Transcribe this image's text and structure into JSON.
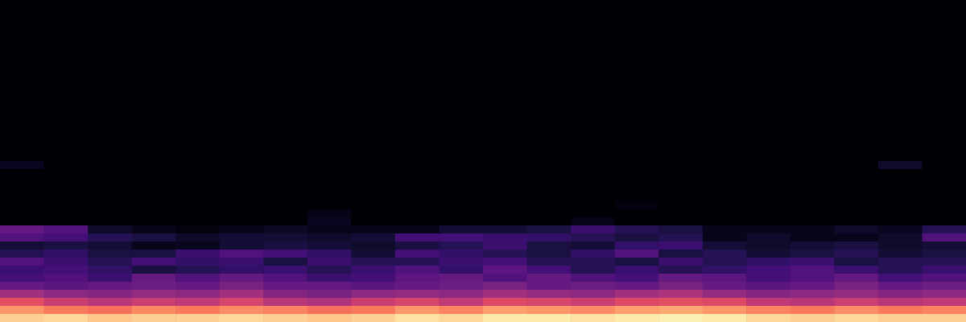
{
  "chart_data": {
    "type": "heatmap",
    "tick_labels": false,
    "color_range": [
      0,
      1
    ],
    "cells": [
      [
        0,
        0,
        0,
        0,
        0,
        0,
        0,
        0,
        0,
        0,
        0,
        0,
        0,
        0,
        0,
        0,
        0,
        0,
        0,
        0,
        0,
        0
      ],
      [
        0,
        0,
        0,
        0,
        0,
        0,
        0,
        0,
        0,
        0,
        0,
        0,
        0,
        0,
        0,
        0,
        0,
        0,
        0,
        0,
        0,
        0
      ],
      [
        0,
        0,
        0,
        0,
        0,
        0,
        0,
        0,
        0,
        0,
        0,
        0,
        0,
        0,
        0,
        0,
        0,
        0,
        0,
        0,
        0,
        0
      ],
      [
        0,
        0,
        0,
        0,
        0,
        0,
        0,
        0,
        0,
        0,
        0,
        0,
        0,
        0,
        0,
        0,
        0,
        0,
        0,
        0,
        0,
        0
      ],
      [
        0,
        0,
        0,
        0,
        0,
        0,
        0,
        0,
        0,
        0,
        0,
        0,
        0,
        0,
        0,
        0,
        0,
        0,
        0,
        0,
        0,
        0
      ],
      [
        0,
        0,
        0,
        0,
        0,
        0,
        0,
        0,
        0,
        0,
        0,
        0,
        0,
        0,
        0,
        0,
        0,
        0,
        0,
        0,
        0,
        0
      ],
      [
        0,
        0,
        0,
        0,
        0,
        0,
        0,
        0,
        0,
        0,
        0,
        0,
        0,
        0,
        0,
        0,
        0,
        0,
        0,
        0,
        0,
        0
      ],
      [
        0,
        0,
        0,
        0,
        0,
        0,
        0,
        0,
        0,
        0,
        0,
        0,
        0,
        0,
        0,
        0,
        0,
        0,
        0,
        0,
        0,
        0
      ],
      [
        0,
        0,
        0,
        0,
        0,
        0,
        0,
        0,
        0,
        0,
        0,
        0,
        0,
        0,
        0,
        0,
        0,
        0,
        0,
        0,
        0,
        0
      ],
      [
        0,
        0,
        0,
        0,
        0,
        0,
        0,
        0,
        0,
        0,
        0,
        0,
        0,
        0,
        0,
        0,
        0,
        0,
        0,
        0,
        0,
        0
      ],
      [
        0,
        0,
        0,
        0,
        0,
        0,
        0,
        0,
        0,
        0,
        0,
        0,
        0,
        0,
        0,
        0,
        0,
        0,
        0,
        0,
        0,
        0
      ],
      [
        0,
        0,
        0,
        0,
        0,
        0,
        0,
        0,
        0,
        0,
        0,
        0,
        0,
        0,
        0,
        0,
        0,
        0,
        0,
        0,
        0,
        0
      ],
      [
        0,
        0,
        0,
        0,
        0,
        0,
        0,
        0,
        0,
        0,
        0,
        0,
        0,
        0,
        0,
        0,
        0,
        0,
        0,
        0,
        0,
        0
      ],
      [
        0,
        0,
        0,
        0,
        0,
        0,
        0,
        0,
        0,
        0,
        0,
        0,
        0,
        0,
        0,
        0,
        0,
        0,
        0,
        0,
        0,
        0
      ],
      [
        0,
        0,
        0,
        0,
        0,
        0,
        0,
        0,
        0,
        0,
        0,
        0,
        0,
        0,
        0,
        0,
        0,
        0,
        0,
        0,
        0,
        0
      ],
      [
        0,
        0,
        0,
        0,
        0,
        0,
        0,
        0,
        0,
        0,
        0,
        0,
        0,
        0,
        0,
        0,
        0,
        0,
        0,
        0,
        0,
        0
      ],
      [
        0,
        0,
        0,
        0,
        0,
        0,
        0,
        0,
        0,
        0,
        0,
        0,
        0,
        0,
        0,
        0,
        0,
        0,
        0,
        0,
        0,
        0
      ],
      [
        0,
        0,
        0,
        0,
        0,
        0,
        0,
        0,
        0,
        0,
        0,
        0,
        0,
        0,
        0,
        0,
        0,
        0,
        0,
        0,
        0,
        0
      ],
      [
        0,
        0,
        0,
        0,
        0,
        0,
        0,
        0,
        0,
        0,
        0,
        0,
        0,
        0,
        0,
        0,
        0,
        0,
        0,
        0,
        0,
        0
      ],
      [
        0,
        0,
        0,
        0,
        0,
        0,
        0,
        0,
        0,
        0,
        0,
        0,
        0,
        0,
        0,
        0,
        0,
        0,
        0,
        0,
        0,
        0
      ],
      [
        0.06,
        0,
        0,
        0,
        0,
        0,
        0,
        0,
        0,
        0,
        0,
        0,
        0,
        0,
        0,
        0,
        0,
        0,
        0,
        0,
        0.08,
        0
      ],
      [
        0,
        0,
        0,
        0,
        0,
        0,
        0,
        0,
        0,
        0,
        0,
        0,
        0,
        0,
        0,
        0,
        0,
        0,
        0,
        0,
        0,
        0
      ],
      [
        0,
        0,
        0,
        0,
        0,
        0,
        0,
        0,
        0,
        0,
        0,
        0,
        0,
        0,
        0,
        0,
        0,
        0,
        0,
        0,
        0,
        0
      ],
      [
        0,
        0,
        0,
        0,
        0,
        0,
        0,
        0,
        0,
        0,
        0,
        0,
        0,
        0,
        0,
        0,
        0,
        0,
        0,
        0,
        0,
        0
      ],
      [
        0,
        0,
        0,
        0,
        0,
        0,
        0,
        0,
        0,
        0,
        0,
        0,
        0,
        0,
        0,
        0,
        0,
        0,
        0,
        0,
        0,
        0
      ],
      [
        0,
        0,
        0,
        0,
        0,
        0,
        0,
        0,
        0,
        0,
        0,
        0,
        0,
        0,
        0.03,
        0,
        0,
        0,
        0,
        0,
        0,
        0
      ],
      [
        0,
        0,
        0,
        0,
        0,
        0,
        0,
        0.04,
        0,
        0,
        0,
        0,
        0,
        0,
        0,
        0,
        0,
        0,
        0,
        0,
        0,
        0
      ],
      [
        0,
        0,
        0,
        0,
        0,
        0,
        0,
        0.06,
        0,
        0,
        0,
        0,
        0,
        0.04,
        0,
        0,
        0,
        0,
        0,
        0,
        0,
        0
      ],
      [
        0.3,
        0.25,
        0.08,
        0.05,
        0.03,
        0.05,
        0.07,
        0.05,
        0.05,
        0.05,
        0.1,
        0.1,
        0.12,
        0.2,
        0.15,
        0.12,
        0.05,
        0.05,
        0.05,
        0.08,
        0.06,
        0.15
      ],
      [
        0.25,
        0.22,
        0.15,
        0.12,
        0.08,
        0.1,
        0.1,
        0.08,
        0.1,
        0.22,
        0.22,
        0.2,
        0.18,
        0.15,
        0.12,
        0.15,
        0.05,
        0.08,
        0.05,
        0.05,
        0.08,
        0.25
      ],
      [
        0.1,
        0.12,
        0.1,
        0.05,
        0.06,
        0.1,
        0.12,
        0.1,
        0.08,
        0.12,
        0.15,
        0.2,
        0.12,
        0.1,
        0.18,
        0.2,
        0.1,
        0.08,
        0.1,
        0.12,
        0.08,
        0.1
      ],
      [
        0.15,
        0.18,
        0.12,
        0.12,
        0.2,
        0.25,
        0.22,
        0.18,
        0.1,
        0.22,
        0.18,
        0.15,
        0.12,
        0.18,
        0.25,
        0.12,
        0.15,
        0.1,
        0.12,
        0.15,
        0.1,
        0.12
      ],
      [
        0.25,
        0.2,
        0.15,
        0.22,
        0.18,
        0.2,
        0.12,
        0.2,
        0.15,
        0.15,
        0.2,
        0.22,
        0.15,
        0.15,
        0.12,
        0.2,
        0.15,
        0.18,
        0.2,
        0.12,
        0.15,
        0.15
      ],
      [
        0.2,
        0.22,
        0.18,
        0.12,
        0.15,
        0.18,
        0.2,
        0.15,
        0.2,
        0.25,
        0.18,
        0.28,
        0.22,
        0.15,
        0.2,
        0.15,
        0.18,
        0.22,
        0.25,
        0.2,
        0.15,
        0.2
      ],
      [
        0.22,
        0.25,
        0.2,
        0.3,
        0.25,
        0.3,
        0.25,
        0.2,
        0.22,
        0.28,
        0.3,
        0.25,
        0.3,
        0.25,
        0.22,
        0.3,
        0.28,
        0.22,
        0.25,
        0.3,
        0.22,
        0.25
      ],
      [
        0.3,
        0.28,
        0.3,
        0.32,
        0.3,
        0.35,
        0.3,
        0.3,
        0.28,
        0.3,
        0.32,
        0.35,
        0.3,
        0.32,
        0.3,
        0.35,
        0.3,
        0.28,
        0.3,
        0.35,
        0.3,
        0.32
      ],
      [
        0.45,
        0.4,
        0.38,
        0.42,
        0.4,
        0.45,
        0.38,
        0.35,
        0.4,
        0.42,
        0.4,
        0.45,
        0.42,
        0.4,
        0.45,
        0.48,
        0.42,
        0.38,
        0.4,
        0.42,
        0.38,
        0.4
      ],
      [
        0.62,
        0.55,
        0.5,
        0.55,
        0.52,
        0.58,
        0.5,
        0.48,
        0.55,
        0.58,
        0.52,
        0.6,
        0.58,
        0.55,
        0.6,
        0.62,
        0.6,
        0.52,
        0.5,
        0.55,
        0.5,
        0.52
      ],
      [
        0.78,
        0.72,
        0.7,
        0.75,
        0.72,
        0.76,
        0.74,
        0.7,
        0.72,
        0.78,
        0.74,
        0.8,
        0.78,
        0.76,
        0.8,
        0.82,
        0.78,
        0.74,
        0.72,
        0.76,
        0.72,
        0.74
      ],
      [
        0.9,
        0.92,
        0.88,
        0.9,
        0.9,
        0.92,
        0.9,
        0.88,
        0.9,
        0.94,
        0.92,
        0.96,
        0.96,
        0.94,
        0.96,
        0.97,
        0.96,
        0.92,
        0.9,
        0.92,
        0.9,
        0.9
      ]
    ]
  }
}
